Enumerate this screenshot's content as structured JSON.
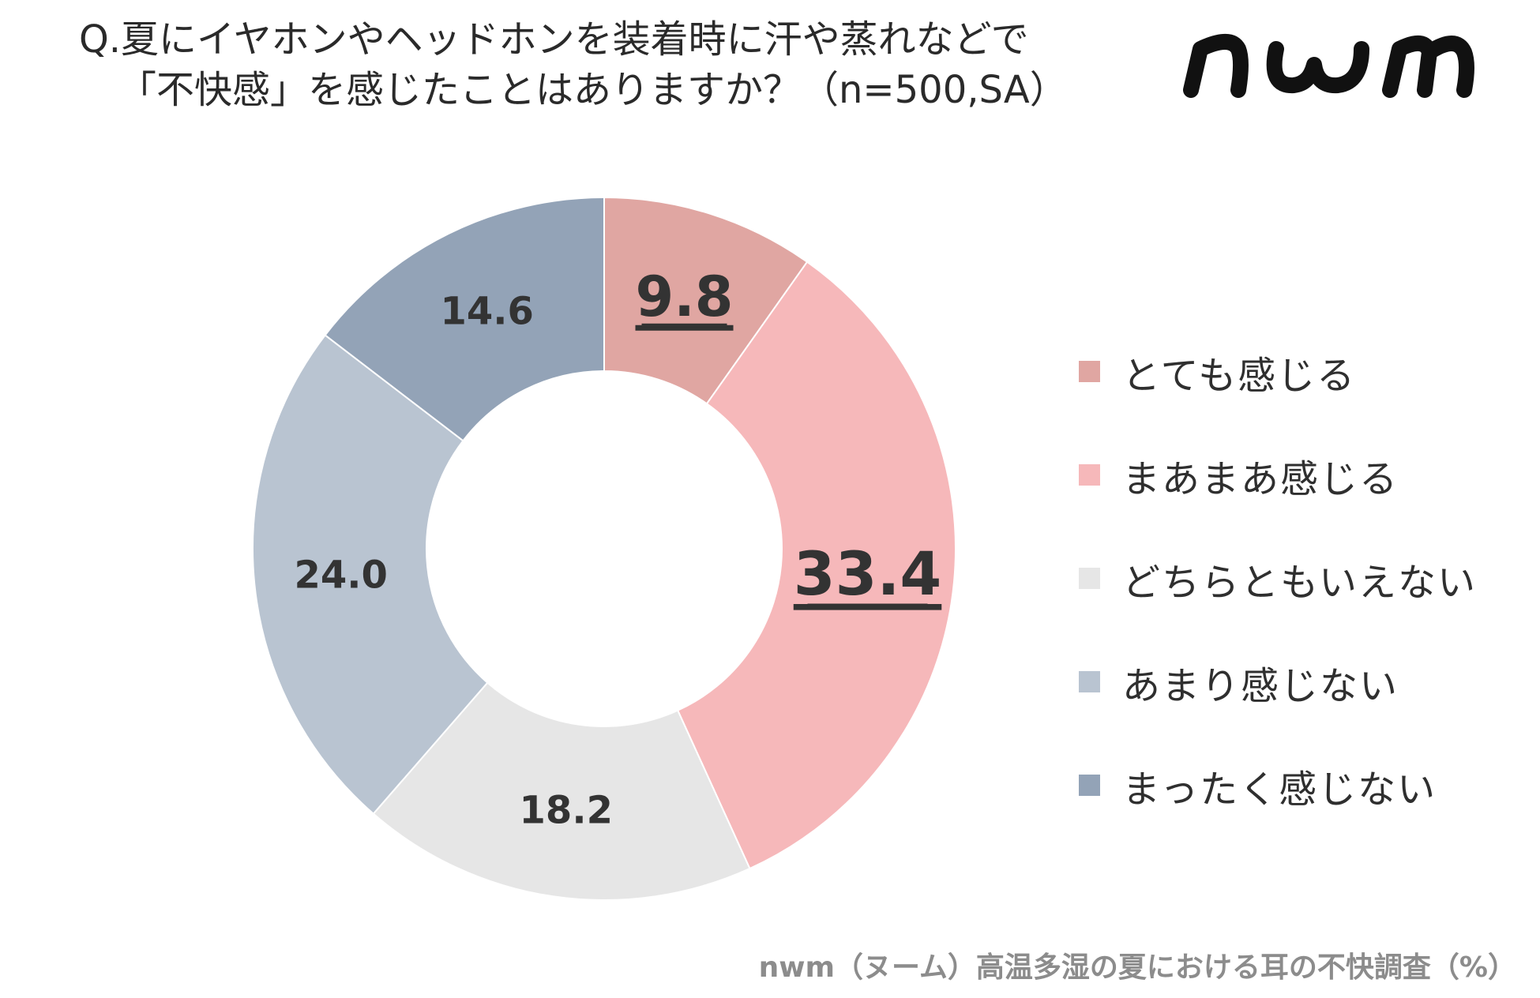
{
  "title": {
    "line1": "Q.夏にイヤホンやヘッドホンを装着時に汗や蒸れなどで",
    "line2": "「不快感」を感じたことはありますか？（n=500,SA）"
  },
  "logo": {
    "text": "nwm"
  },
  "source": "nwm（ヌーム）高温多湿の夏における耳の不快調査（%）",
  "chart_data": {
    "type": "pie",
    "variant": "donut",
    "unit": "%",
    "start_angle": "12 o'clock",
    "direction": "clockwise",
    "legend_position": "right",
    "categories": [
      "とても感じる",
      "まあまあ感じる",
      "どちらともいえない",
      "あまり感じない",
      "まったく感じない"
    ],
    "values": [
      9.8,
      33.4,
      18.2,
      24.0,
      14.6
    ],
    "labels": [
      "9.8",
      "33.4",
      "18.2",
      "24.0",
      "14.6"
    ],
    "colors": [
      "#e0a6a2",
      "#f6b8ba",
      "#e6e6e6",
      "#b9c4d1",
      "#93a3b7"
    ],
    "emphasized": [
      true,
      true,
      false,
      false,
      false
    ]
  }
}
